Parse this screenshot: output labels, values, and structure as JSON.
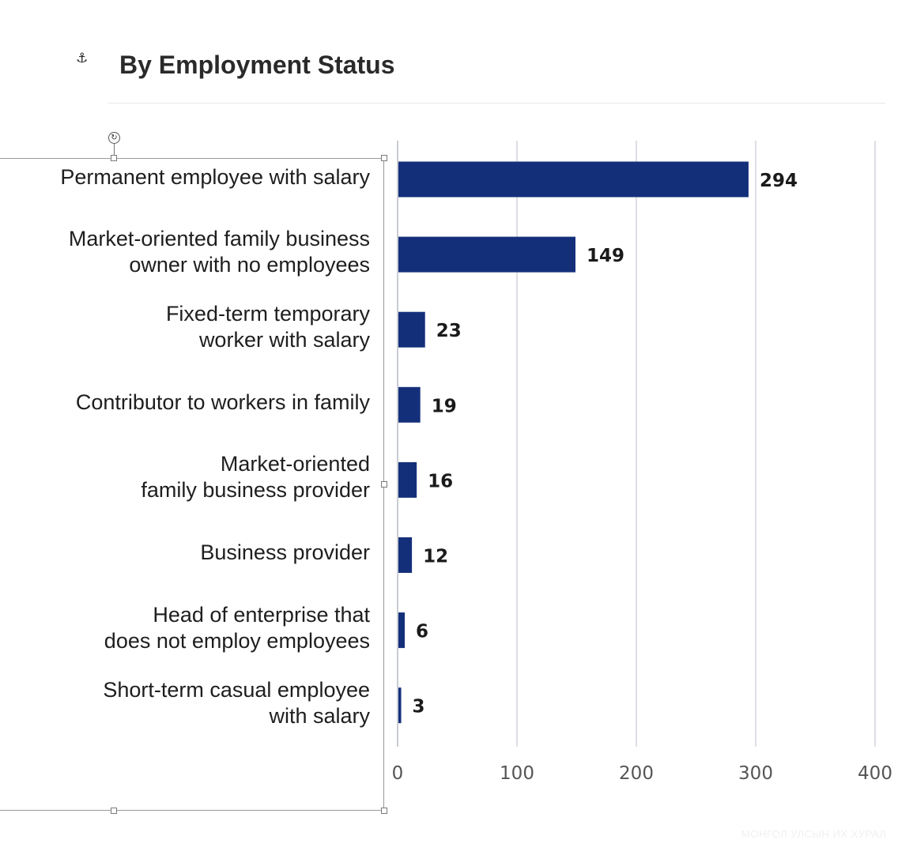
{
  "header": {
    "anchor_icon": "⚓",
    "title": "By Employment Status"
  },
  "selection": {
    "rotate_icon": "↻"
  },
  "chart_data": {
    "type": "bar",
    "orientation": "horizontal",
    "categories": [
      "Permanent employee with salary",
      "Market-oriented family business\nowner with no employees",
      "Fixed-term temporary\nworker with salary",
      "Contributor to workers in family",
      "Market-oriented\nfamily business provider",
      "Business provider",
      "Head of enterprise that\ndoes not employ employees",
      "Short-term casual employee\nwith salary"
    ],
    "values": [
      294,
      149,
      23,
      19,
      16,
      12,
      6,
      3
    ],
    "xlim": [
      0,
      400
    ],
    "xticks": [
      "0",
      "100",
      "200",
      "300",
      "400"
    ],
    "grid": "vertical",
    "bar_color": "#142f7a",
    "title": "By Employment Status"
  },
  "watermark": "МОНГОЛ УЛСЫН ИХ ХУРАЛ"
}
